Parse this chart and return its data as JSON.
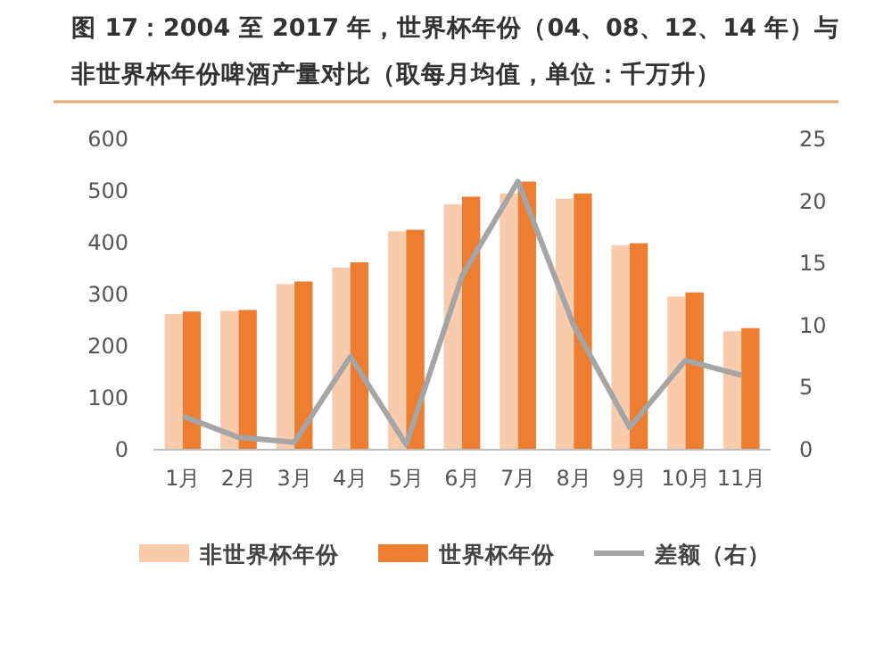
{
  "chart_data": {
    "type": "bar",
    "title": "图 17：2004 至 2017 年，世界杯年份（04、08、12、14 年）与非世界杯年份啤酒产量对比（取每月均值，单位：千万升）",
    "categories": [
      "1月",
      "2月",
      "3月",
      "4月",
      "5月",
      "6月",
      "7月",
      "8月",
      "9月",
      "10月",
      "11月"
    ],
    "series": [
      {
        "name": "非世界杯年份",
        "color": "#f8cbad",
        "values": [
          262,
          268,
          320,
          352,
          422,
          474,
          495,
          485,
          395,
          296,
          229
        ]
      },
      {
        "name": "世界杯年份",
        "color": "#ed7d31",
        "values": [
          267,
          270,
          325,
          362,
          425,
          489,
          518,
          495,
          399,
          304,
          235
        ]
      },
      {
        "name": "差额（右）",
        "type": "line",
        "axis": "y2",
        "color": "#a5a5a5",
        "values": [
          2.7,
          1.0,
          0.6,
          7.5,
          0.4,
          14,
          21.6,
          10,
          1.8,
          7.2,
          6.0
        ]
      }
    ],
    "ylim": [
      0,
      600
    ],
    "yticks": [
      0,
      100,
      200,
      300,
      400,
      500,
      600
    ],
    "y2lim": [
      0,
      25
    ],
    "y2ticks": [
      0,
      5,
      10,
      15,
      20,
      25
    ],
    "grid": false,
    "legend": "bottom",
    "marker": "none",
    "line_style": "solid"
  }
}
